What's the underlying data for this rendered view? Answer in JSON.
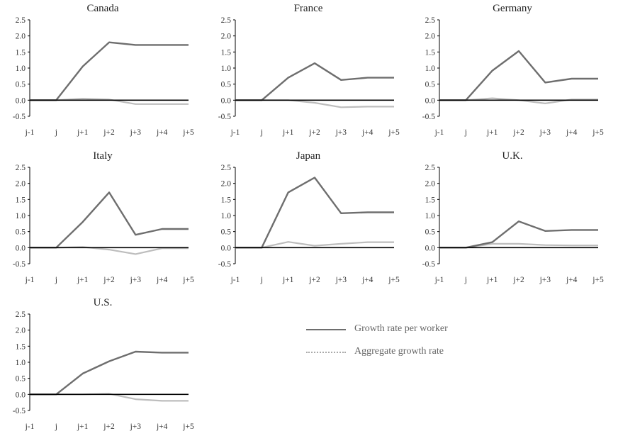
{
  "chart_data": [
    {
      "type": "line",
      "title": "Canada",
      "x": [
        "j-1",
        "j",
        "j+1",
        "j+2",
        "j+3",
        "j+4",
        "j+5"
      ],
      "yticks": [
        "2.5",
        "2.0",
        "1.5",
        "1.0",
        "0.5",
        "0.0",
        "-0.5"
      ],
      "ylim": [
        -0.5,
        2.5
      ],
      "series": [
        {
          "name": "Growth rate per worker",
          "values": [
            0,
            0,
            1.05,
            1.8,
            1.72,
            1.72,
            1.72
          ]
        },
        {
          "name": "Aggregate growth rate",
          "values": [
            0,
            0,
            0.05,
            0.02,
            -0.12,
            -0.12,
            -0.12
          ]
        }
      ]
    },
    {
      "type": "line",
      "title": "France",
      "x": [
        "j-1",
        "j",
        "j+1",
        "j+2",
        "j+3",
        "j+4",
        "j+5"
      ],
      "yticks": [
        "2.5",
        "2.0",
        "1.5",
        "1.0",
        "0.5",
        "0.0",
        "-0.5"
      ],
      "ylim": [
        -0.5,
        2.5
      ],
      "series": [
        {
          "name": "Growth rate per worker",
          "values": [
            0,
            0,
            0.7,
            1.15,
            0.63,
            0.7,
            0.7
          ]
        },
        {
          "name": "Aggregate growth rate",
          "values": [
            0,
            0,
            0.0,
            -0.08,
            -0.22,
            -0.2,
            -0.2
          ]
        }
      ]
    },
    {
      "type": "line",
      "title": "Germany",
      "x": [
        "j-1",
        "j",
        "j+1",
        "j+2",
        "j+3",
        "j+4",
        "j+5"
      ],
      "yticks": [
        "2.5",
        "2.0",
        "1.5",
        "1.0",
        "0.5",
        "0.0",
        "-0.5"
      ],
      "ylim": [
        -0.5,
        2.5
      ],
      "series": [
        {
          "name": "Growth rate per worker",
          "values": [
            0,
            0,
            0.92,
            1.53,
            0.55,
            0.67,
            0.67
          ]
        },
        {
          "name": "Aggregate growth rate",
          "values": [
            0,
            0,
            0.06,
            0.0,
            -0.1,
            0.02,
            0.02
          ]
        }
      ]
    },
    {
      "type": "line",
      "title": "Italy",
      "x": [
        "j-1",
        "j",
        "j+1",
        "j+2",
        "j+3",
        "j+4",
        "j+5"
      ],
      "yticks": [
        "2.5",
        "2.0",
        "1.5",
        "1.0",
        "0.5",
        "0.0",
        "-0.5"
      ],
      "ylim": [
        -0.5,
        2.5
      ],
      "series": [
        {
          "name": "Growth rate per worker",
          "values": [
            0,
            0,
            0.8,
            1.72,
            0.4,
            0.58,
            0.58
          ]
        },
        {
          "name": "Aggregate growth rate",
          "values": [
            0,
            0,
            0.02,
            -0.06,
            -0.2,
            -0.02,
            -0.02
          ]
        }
      ]
    },
    {
      "type": "line",
      "title": "Japan",
      "x": [
        "j-1",
        "j",
        "j+1",
        "j+2",
        "j+3",
        "j+4",
        "j+5"
      ],
      "yticks": [
        "2.5",
        "2.0",
        "1.5",
        "1.0",
        "0.5",
        "0.0",
        "-0.5"
      ],
      "ylim": [
        -0.5,
        2.5
      ],
      "series": [
        {
          "name": "Growth rate per worker",
          "values": [
            0,
            0,
            1.72,
            2.18,
            1.07,
            1.1,
            1.1
          ]
        },
        {
          "name": "Aggregate growth rate",
          "values": [
            0,
            0,
            0.18,
            0.06,
            0.12,
            0.17,
            0.17
          ]
        }
      ]
    },
    {
      "type": "line",
      "title": "U.K.",
      "x": [
        "j-1",
        "j",
        "j+1",
        "j+2",
        "j+3",
        "j+4",
        "j+5"
      ],
      "yticks": [
        "2.5",
        "2.0",
        "1.5",
        "1.0",
        "0.5",
        "0.0",
        "-0.5"
      ],
      "ylim": [
        -0.5,
        2.5
      ],
      "series": [
        {
          "name": "Growth rate per worker",
          "values": [
            0,
            0,
            0.17,
            0.82,
            0.52,
            0.55,
            0.55
          ]
        },
        {
          "name": "Aggregate growth rate",
          "values": [
            0,
            0,
            0.12,
            0.12,
            0.08,
            0.07,
            0.07
          ]
        }
      ]
    },
    {
      "type": "line",
      "title": "U.S.",
      "x": [
        "j-1",
        "j",
        "j+1",
        "j+2",
        "j+3",
        "j+4",
        "j+5"
      ],
      "yticks": [
        "2.5",
        "2.0",
        "1.5",
        "1.0",
        "0.5",
        "0.0",
        "-0.5"
      ],
      "ylim": [
        -0.5,
        2.5
      ],
      "series": [
        {
          "name": "Growth rate per worker",
          "values": [
            0,
            0,
            0.65,
            1.03,
            1.33,
            1.3,
            1.3
          ]
        },
        {
          "name": "Aggregate growth rate",
          "values": [
            0,
            0,
            0.0,
            0.02,
            -0.15,
            -0.2,
            -0.2
          ]
        }
      ]
    }
  ],
  "legend": {
    "items": [
      {
        "label": "Growth rate per worker",
        "color": "#6e6e6e"
      },
      {
        "label": "Aggregate growth rate",
        "color": "#bdbdbd"
      }
    ]
  },
  "colors": {
    "per_worker": "#6e6e6e",
    "aggregate": "#bdbdbd",
    "axis": "#000000"
  }
}
